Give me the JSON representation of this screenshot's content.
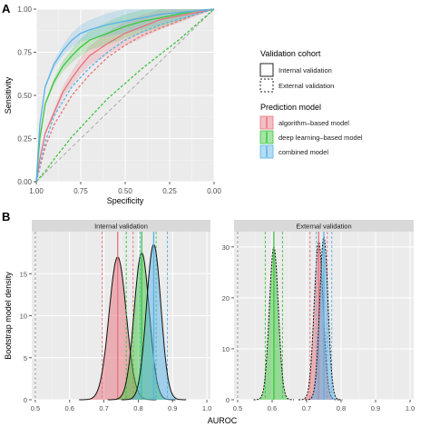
{
  "chart_data": [
    {
      "panel": "A",
      "type": "line",
      "xlabel": "Specificity",
      "ylabel": "Sensitivity",
      "x_reversed": true,
      "xlim": [
        1.0,
        0.0
      ],
      "ylim": [
        0.0,
        1.0
      ],
      "xticks": [
        "1.00",
        "0.75",
        "0.50",
        "0.25",
        "0.00"
      ],
      "yticks": [
        "0.00",
        "0.25",
        "0.50",
        "0.75",
        "1.00"
      ],
      "grid": true,
      "reference_line": "diagonal",
      "legend_cohort": {
        "title": "Validation cohort",
        "entries": [
          "Internal validation",
          "External validation"
        ]
      },
      "legend_model": {
        "title": "Prediction model",
        "entries": [
          "algorithm–based model",
          "deep learning–based model",
          "combined model"
        ]
      },
      "colors": {
        "algorithm": "#e8727c",
        "deep": "#3cc63c",
        "combined": "#58b2e8"
      },
      "series": [
        {
          "model": "algorithm",
          "cohort": "internal",
          "x": [
            1.0,
            0.98,
            0.95,
            0.9,
            0.85,
            0.8,
            0.75,
            0.7,
            0.6,
            0.5,
            0.4,
            0.3,
            0.2,
            0.1,
            0.0
          ],
          "y": [
            0.0,
            0.13,
            0.28,
            0.4,
            0.52,
            0.6,
            0.67,
            0.73,
            0.8,
            0.86,
            0.9,
            0.94,
            0.96,
            0.98,
            1.0
          ]
        },
        {
          "model": "deep",
          "cohort": "internal",
          "x": [
            1.0,
            0.98,
            0.95,
            0.9,
            0.85,
            0.8,
            0.75,
            0.7,
            0.6,
            0.5,
            0.4,
            0.3,
            0.2,
            0.1,
            0.0
          ],
          "y": [
            0.0,
            0.25,
            0.45,
            0.58,
            0.67,
            0.73,
            0.78,
            0.82,
            0.86,
            0.9,
            0.93,
            0.95,
            0.97,
            0.99,
            1.0
          ]
        },
        {
          "model": "combined",
          "cohort": "internal",
          "x": [
            1.0,
            0.98,
            0.95,
            0.9,
            0.85,
            0.8,
            0.75,
            0.7,
            0.6,
            0.5,
            0.4,
            0.3,
            0.2,
            0.1,
            0.0
          ],
          "y": [
            0.0,
            0.33,
            0.55,
            0.68,
            0.76,
            0.82,
            0.86,
            0.88,
            0.91,
            0.93,
            0.95,
            0.97,
            0.98,
            0.99,
            1.0
          ]
        },
        {
          "model": "algorithm",
          "cohort": "external",
          "x": [
            1.0,
            0.95,
            0.9,
            0.8,
            0.7,
            0.6,
            0.5,
            0.4,
            0.3,
            0.2,
            0.1,
            0.0
          ],
          "y": [
            0.0,
            0.2,
            0.33,
            0.5,
            0.62,
            0.72,
            0.79,
            0.85,
            0.89,
            0.93,
            0.97,
            1.0
          ]
        },
        {
          "model": "deep",
          "cohort": "external",
          "x": [
            1.0,
            0.95,
            0.9,
            0.8,
            0.7,
            0.6,
            0.5,
            0.4,
            0.3,
            0.2,
            0.1,
            0.0
          ],
          "y": [
            0.0,
            0.06,
            0.13,
            0.26,
            0.37,
            0.48,
            0.57,
            0.66,
            0.74,
            0.82,
            0.91,
            1.0
          ]
        },
        {
          "model": "combined",
          "cohort": "external",
          "x": [
            1.0,
            0.95,
            0.9,
            0.8,
            0.7,
            0.6,
            0.5,
            0.4,
            0.3,
            0.2,
            0.1,
            0.0
          ],
          "y": [
            0.0,
            0.23,
            0.38,
            0.55,
            0.66,
            0.75,
            0.82,
            0.87,
            0.91,
            0.94,
            0.97,
            1.0
          ]
        }
      ]
    },
    {
      "panel": "B",
      "type": "area",
      "xlabel": "AUROC",
      "ylabel": "Bootstrap model density",
      "xlim": [
        0.5,
        1.0
      ],
      "xticks": [
        "0.5",
        "0.6",
        "0.7",
        "0.8",
        "0.9",
        "1.0"
      ],
      "facets": [
        {
          "title": "Internal validation",
          "ylim": [
            0,
            20
          ],
          "yticks": [
            "0",
            "5",
            "10",
            "15"
          ],
          "reference_x": 0.5,
          "densities": [
            {
              "model": "algorithm",
              "mean": 0.74,
              "sd": 0.025,
              "peak": 17.0,
              "ci": [
                0.695,
                0.785
              ]
            },
            {
              "model": "deep",
              "mean": 0.81,
              "sd": 0.022,
              "peak": 17.5,
              "ci": [
                0.765,
                0.852
              ]
            },
            {
              "model": "combined",
              "mean": 0.845,
              "sd": 0.021,
              "peak": 18.5,
              "ci": [
                0.805,
                0.885
              ]
            }
          ]
        },
        {
          "title": "External validation",
          "ylim": [
            0,
            33
          ],
          "yticks": [
            "0",
            "10",
            "20",
            "30"
          ],
          "reference_x": 0.5,
          "densities": [
            {
              "model": "algorithm",
              "mean": 0.735,
              "sd": 0.013,
              "peak": 31.0,
              "ci": [
                0.71,
                0.76
              ]
            },
            {
              "model": "deep",
              "mean": 0.605,
              "sd": 0.013,
              "peak": 30.0,
              "ci": [
                0.58,
                0.63
              ]
            },
            {
              "model": "combined",
              "mean": 0.75,
              "sd": 0.012,
              "peak": 32.0,
              "ci": [
                0.728,
                0.773
              ]
            }
          ]
        }
      ]
    }
  ],
  "labels": {
    "panel_a": "A",
    "panel_b": "B"
  }
}
